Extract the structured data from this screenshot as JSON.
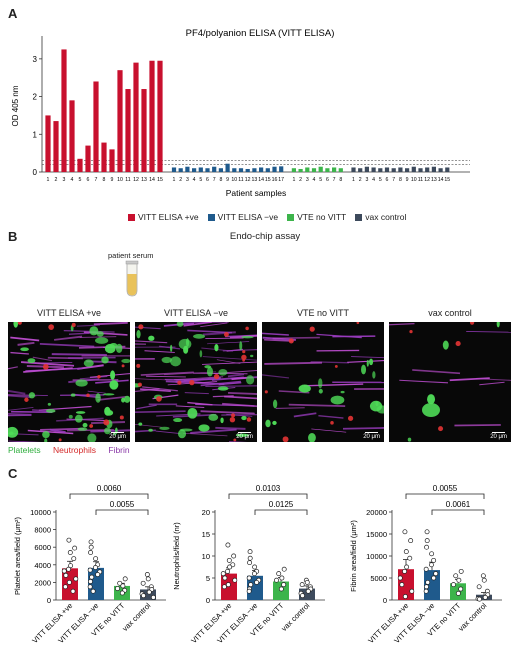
{
  "panelA": {
    "letter": "A",
    "chart_data": {
      "type": "bar",
      "title": "PF4/polyanion ELISA (VITT ELISA)",
      "xlabel": "Patient samples",
      "ylabel": "OD 405 nm",
      "ylim": [
        0,
        3.5
      ],
      "yticks": [
        0,
        1,
        2,
        3
      ],
      "threshold_lines": [
        0.2,
        0.3
      ],
      "series": [
        {
          "name": "VITT ELISA +ve",
          "color": "#c8102e",
          "x": [
            "1",
            "2",
            "3",
            "4",
            "5",
            "6",
            "7",
            "8",
            "9",
            "10",
            "11",
            "12",
            "13",
            "14",
            "15"
          ],
          "values": [
            1.5,
            1.35,
            3.25,
            1.9,
            0.35,
            0.7,
            2.4,
            0.78,
            0.6,
            2.7,
            2.2,
            2.9,
            2.2,
            2.95,
            2.95
          ]
        },
        {
          "name": "VITT ELISA −ve",
          "color": "#1f5a8c",
          "x": [
            "1",
            "2",
            "3",
            "4",
            "5",
            "6",
            "7",
            "8",
            "9",
            "10",
            "11",
            "12",
            "13",
            "14",
            "15",
            "16",
            "17"
          ],
          "values": [
            0.12,
            0.1,
            0.14,
            0.1,
            0.12,
            0.1,
            0.14,
            0.1,
            0.22,
            0.1,
            0.1,
            0.08,
            0.1,
            0.12,
            0.1,
            0.14,
            0.15
          ]
        },
        {
          "name": "VTE no VITT",
          "color": "#3cb44b",
          "x": [
            "1",
            "2",
            "3",
            "4",
            "5",
            "6",
            "7",
            "8"
          ],
          "values": [
            0.1,
            0.08,
            0.12,
            0.1,
            0.14,
            0.1,
            0.12,
            0.1
          ]
        },
        {
          "name": "vax control",
          "color": "#3d4a5c",
          "x": [
            "1",
            "2",
            "3",
            "4",
            "5",
            "6",
            "7",
            "8",
            "9",
            "10",
            "11",
            "12",
            "13",
            "14",
            "15"
          ],
          "values": [
            0.12,
            0.1,
            0.14,
            0.12,
            0.1,
            0.12,
            0.1,
            0.12,
            0.1,
            0.14,
            0.1,
            0.12,
            0.14,
            0.1,
            0.12
          ]
        }
      ]
    }
  },
  "panelB": {
    "letter": "B",
    "title": "Endo-chip assay",
    "tube_label": "patient serum",
    "images": [
      {
        "title": "VITT ELISA +ve",
        "scale": "20 μm"
      },
      {
        "title": "VITT ELISA −ve",
        "scale": "20 μm"
      },
      {
        "title": "VTE no VITT",
        "scale": "20 μm"
      },
      {
        "title": "vax control",
        "scale": "20 μm"
      }
    ],
    "stain_legend": [
      {
        "label": "Platelets",
        "color": "#3cc24a"
      },
      {
        "label": "Neutrophils",
        "color": "#d42a2a"
      },
      {
        "label": "Fibrin",
        "color": "#8b3aa8"
      }
    ]
  },
  "panelC": {
    "letter": "C",
    "chart_data": [
      {
        "type": "bar",
        "ylabel": "Platelet area/field (μm²)",
        "ylim": [
          0,
          10000
        ],
        "yticks": [
          0,
          2000,
          4000,
          6000,
          8000,
          10000
        ],
        "categories": [
          "VITT ELISA +ve",
          "VITT ELISA −ve",
          "VTE no VITT",
          "vax control"
        ],
        "values": [
          3600,
          3650,
          1600,
          1200
        ],
        "errors": [
          800,
          700,
          300,
          300
        ],
        "colors": [
          "#c8102e",
          "#1f5a8c",
          "#3cb44b",
          "#3d4a5c"
        ],
        "points": [
          [
            6800,
            5900,
            5400,
            4700,
            3900,
            3500,
            3300,
            2800,
            2400,
            2000,
            1500,
            1000
          ],
          [
            6600,
            6000,
            5400,
            4700,
            4000,
            3700,
            3400,
            3200,
            2900,
            2600,
            2100,
            1500,
            1000
          ],
          [
            2400,
            1900,
            1600,
            1300,
            1100,
            800
          ],
          [
            2900,
            2400,
            1900,
            1500,
            1200,
            900,
            700,
            500,
            300
          ]
        ],
        "comparisons": [
          {
            "label": "0.0060",
            "from": 0,
            "to": 3
          },
          {
            "label": "0.0055",
            "from": 1,
            "to": 3
          }
        ]
      },
      {
        "type": "bar",
        "ylabel": "Neutrophils/field (nr)",
        "ylim": [
          0,
          20
        ],
        "yticks": [
          0,
          5,
          10,
          15,
          20
        ],
        "categories": [
          "VITT ELISA +ve",
          "VITT ELISA −ve",
          "VTE no VITT",
          "vax control"
        ],
        "values": [
          6.0,
          5.5,
          4.2,
          2.6
        ],
        "errors": [
          1.3,
          1.2,
          0.9,
          0.6
        ],
        "colors": [
          "#c8102e",
          "#1f5a8c",
          "#3cb44b",
          "#3d4a5c"
        ],
        "points": [
          [
            12.5,
            10,
            9,
            8,
            7.5,
            6.5,
            6,
            5,
            4.5,
            3.5,
            3
          ],
          [
            11,
            9.5,
            8.5,
            7.5,
            6.5,
            6,
            5,
            4.5,
            4,
            3.5,
            2.5,
            2
          ],
          [
            7,
            6,
            5,
            4.5,
            3.5,
            2.5
          ],
          [
            4.5,
            4,
            3.5,
            3,
            2.5,
            2,
            1.5,
            1
          ]
        ],
        "comparisons": [
          {
            "label": "0.0103",
            "from": 0,
            "to": 3
          },
          {
            "label": "0.0125",
            "from": 1,
            "to": 3
          }
        ]
      },
      {
        "type": "bar",
        "ylabel": "Fibrin area/field (μm²)",
        "ylim": [
          0,
          20000
        ],
        "yticks": [
          0,
          5000,
          10000,
          15000,
          20000
        ],
        "categories": [
          "VITT ELISA +ve",
          "VITT ELISA −ve",
          "VTE no VITT",
          "vax control"
        ],
        "values": [
          7000,
          6800,
          3800,
          1200
        ],
        "errors": [
          2200,
          1800,
          900,
          500
        ],
        "colors": [
          "#c8102e",
          "#1f5a8c",
          "#3cb44b",
          "#3d4a5c"
        ],
        "points": [
          [
            15500,
            13500,
            11000,
            9500,
            7500,
            6500,
            5000,
            3500,
            2000,
            800
          ],
          [
            15500,
            13500,
            12000,
            10500,
            9000,
            8000,
            7000,
            6000,
            5000,
            4000,
            3000,
            2000
          ],
          [
            6500,
            5500,
            4500,
            3500,
            2500,
            1500
          ],
          [
            5500,
            4500,
            3000,
            2000,
            1200,
            600,
            300,
            200
          ]
        ],
        "comparisons": [
          {
            "label": "0.0055",
            "from": 0,
            "to": 3
          },
          {
            "label": "0.0061",
            "from": 1,
            "to": 3
          }
        ]
      }
    ]
  }
}
